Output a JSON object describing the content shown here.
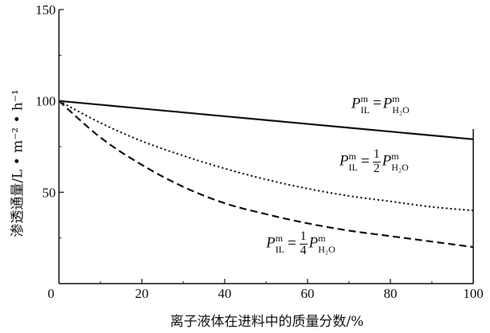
{
  "chart_data": {
    "type": "line",
    "ylabel": "渗透通量/L • m⁻² • h⁻¹",
    "xlabel": "离子液体在进料中的质量分数/%",
    "xlim": [
      0,
      100
    ],
    "ylim": [
      0,
      150
    ],
    "x_ticks": [
      "0",
      "20",
      "40",
      "60",
      "80",
      "100"
    ],
    "y_ticks": [
      "50",
      "100",
      "150"
    ],
    "grid": false,
    "series": [
      {
        "name": "P_IL^m = P_H2O^m",
        "style": "solid",
        "x": [
          0,
          20,
          40,
          60,
          80,
          100
        ],
        "y": [
          100,
          95.8,
          91.6,
          87.4,
          83.2,
          79
        ]
      },
      {
        "name": "P_IL^m = 1/2 P_H2O^m",
        "style": "dotted",
        "x": [
          0,
          10,
          20,
          30,
          40,
          50,
          60,
          70,
          80,
          90,
          100
        ],
        "y": [
          100,
          88,
          78,
          70,
          63,
          57,
          52,
          48,
          45,
          42,
          40
        ]
      },
      {
        "name": "P_IL^m = 1/4 P_H2O^m",
        "style": "dashed",
        "x": [
          0,
          10,
          20,
          30,
          40,
          50,
          60,
          70,
          80,
          90,
          100
        ],
        "y": [
          100,
          80,
          65,
          53,
          44,
          38,
          33,
          29,
          26,
          23,
          20
        ]
      }
    ],
    "annotations": [
      {
        "text_parts": {
          "P": "P",
          "sup": "m",
          "sub1": "IL",
          "eq": "=",
          "num": "",
          "den": "",
          "P2": "P",
          "sup2": "m",
          "sub2": "H₂O"
        }
      },
      {
        "text_parts": {
          "P": "P",
          "sup": "m",
          "sub1": "IL",
          "eq": "=",
          "num": "1",
          "den": "2",
          "P2": "P",
          "sup2": "m",
          "sub2": "H₂O"
        }
      },
      {
        "text_parts": {
          "P": "P",
          "sup": "m",
          "sub1": "IL",
          "eq": "=",
          "num": "1",
          "den": "4",
          "P2": "P",
          "sup2": "m",
          "sub2": "H₂O"
        }
      }
    ]
  }
}
